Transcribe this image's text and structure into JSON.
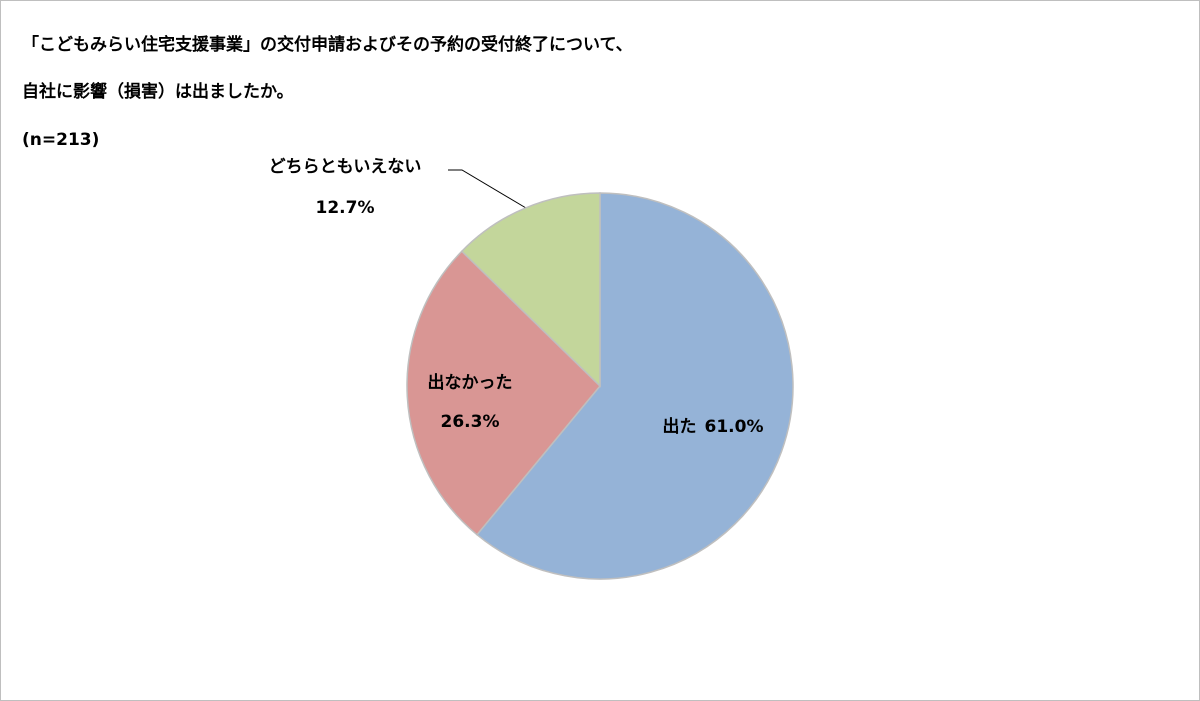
{
  "chart_data": {
    "type": "pie",
    "title": [
      "「こどもみらい住宅支援事業」の交付申請およびその予約の受付終了について、",
      "自社に影響（損害）は出ましたか。"
    ],
    "subtitle": "(n=213)",
    "categories": [
      "出た",
      "出なかった",
      "どちらともいえない"
    ],
    "values": [
      61.0,
      26.3,
      12.7
    ],
    "value_labels": [
      "61.0%",
      "26.3%",
      "12.7%"
    ],
    "colors": [
      "#95b3d7",
      "#d99694",
      "#c3d69b"
    ]
  }
}
